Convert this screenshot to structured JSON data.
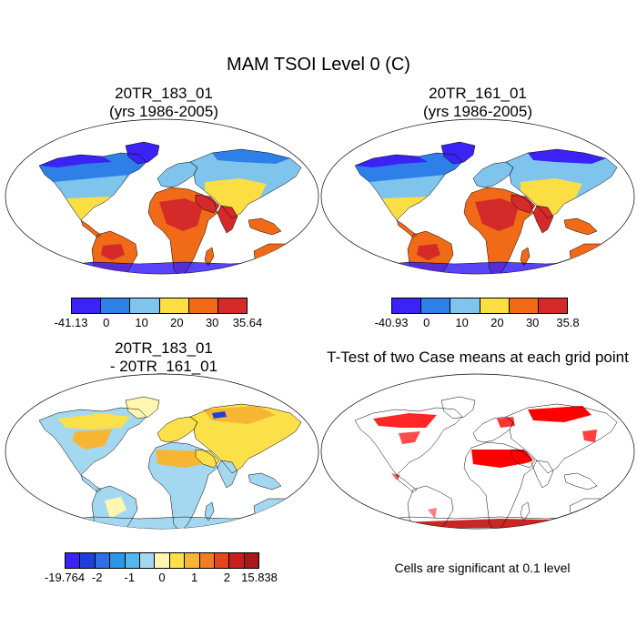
{
  "title": "MAM TSOI Level 0 (C)",
  "panels": [
    {
      "title_line1": "20TR_183_01",
      "title_line2": "(yrs 1986-2005)",
      "colorbar": {
        "labels": [
          "-41.13",
          "0",
          "10",
          "20",
          "30",
          "35.64"
        ],
        "colors": [
          "#3b22f5",
          "#2e7fe8",
          "#7ec4ec",
          "#fbde43",
          "#f06a17",
          "#d42a2a"
        ]
      }
    },
    {
      "title_line1": "20TR_161_01",
      "title_line2": "(yrs 1986-2005)",
      "colorbar": {
        "labels": [
          "-40.93",
          "0",
          "10",
          "20",
          "30",
          "35.8"
        ],
        "colors": [
          "#3b22f5",
          "#2e7fe8",
          "#7ec4ec",
          "#fbde43",
          "#f06a17",
          "#d42a2a"
        ]
      }
    },
    {
      "title_line1": "20TR_183_01",
      "title_line2": "- 20TR_161_01",
      "colorbar": {
        "labels": [
          "-19.764",
          "-2",
          "-1",
          "0",
          "1",
          "2",
          "15.838"
        ],
        "colors": [
          "#3b22f5",
          "#1f3fd9",
          "#2e6ee6",
          "#2a96e8",
          "#52b8f0",
          "#a4d8f0",
          "#fff6b0",
          "#fbe04a",
          "#f6b634",
          "#f07d1f",
          "#e2481c",
          "#c81e1e",
          "#a81818"
        ]
      }
    },
    {
      "title_line1": "T-Test of two Case means at each grid point",
      "note": "Cells are significant at 0.1 level"
    }
  ]
}
